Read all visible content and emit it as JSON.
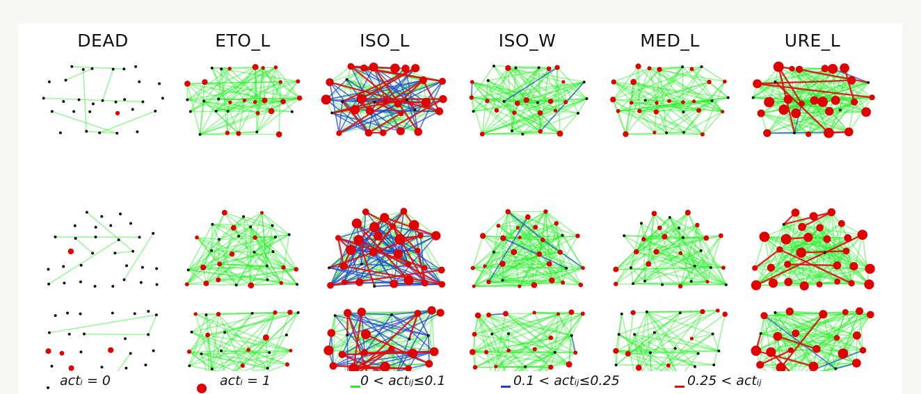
{
  "columns": [
    "DEAD",
    "ETO_L",
    "ISO_L",
    "ISO_W",
    "MED_L",
    "URE_L"
  ],
  "legend": [
    {
      "label": "actᵢ = 0",
      "marker": "small-black-dot",
      "color": "#000000"
    },
    {
      "label": "actᵢ = 1",
      "marker": "red-dot",
      "color": "#e00000"
    },
    {
      "label": "0 < actᵢⱼ≤0.1",
      "marker": "line",
      "color": "#22ee22"
    },
    {
      "label": "0.1 < actᵢⱼ≤0.25",
      "marker": "line",
      "color": "#1f3fcc"
    },
    {
      "label": "0.25 < actᵢⱼ",
      "marker": "line",
      "color": "#e01010"
    }
  ],
  "colors": {
    "inactive_node": "#111111",
    "active_node": "#e00000",
    "weak_edge": "#22ee22",
    "mid_edge": "#2244cc",
    "strong_edge": "#dd1010"
  }
}
